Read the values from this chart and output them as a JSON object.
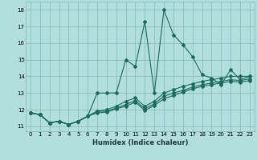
{
  "xlabel": "Humidex (Indice chaleur)",
  "background_color": "#b2dede",
  "grid_color": "#80baba",
  "line_color": "#1a6b5a",
  "xlim": [
    -0.5,
    23.5
  ],
  "ylim": [
    10.7,
    18.5
  ],
  "xticks": [
    0,
    1,
    2,
    3,
    4,
    5,
    6,
    7,
    8,
    9,
    10,
    11,
    12,
    13,
    14,
    15,
    16,
    17,
    18,
    19,
    20,
    21,
    22,
    23
  ],
  "yticks": [
    11,
    12,
    13,
    14,
    15,
    16,
    17,
    18
  ],
  "series": [
    [
      11.8,
      11.7,
      11.2,
      11.3,
      11.1,
      11.3,
      11.6,
      13.0,
      13.0,
      13.0,
      15.0,
      14.6,
      17.3,
      13.0,
      18.0,
      16.5,
      15.9,
      15.2,
      14.1,
      13.9,
      13.5,
      14.4,
      13.8,
      14.0
    ],
    [
      11.8,
      11.7,
      11.2,
      11.3,
      11.1,
      11.3,
      11.6,
      11.9,
      12.0,
      12.2,
      12.5,
      12.7,
      12.2,
      12.5,
      13.0,
      13.2,
      13.4,
      13.55,
      13.7,
      13.8,
      13.9,
      14.0,
      14.0,
      14.0
    ],
    [
      11.8,
      11.7,
      11.2,
      11.3,
      11.1,
      11.3,
      11.6,
      11.9,
      11.9,
      12.1,
      12.3,
      12.55,
      12.05,
      12.35,
      12.8,
      13.0,
      13.15,
      13.35,
      13.5,
      13.6,
      13.7,
      13.8,
      13.75,
      13.85
    ],
    [
      11.8,
      11.7,
      11.2,
      11.3,
      11.1,
      11.3,
      11.6,
      11.8,
      11.85,
      12.05,
      12.2,
      12.45,
      11.95,
      12.25,
      12.65,
      12.85,
      13.05,
      13.25,
      13.4,
      13.5,
      13.6,
      13.7,
      13.65,
      13.75
    ]
  ],
  "marker": "D",
  "markersize": 2.0,
  "linewidth": 0.8,
  "tick_fontsize": 5.0,
  "xlabel_fontsize": 6.0
}
